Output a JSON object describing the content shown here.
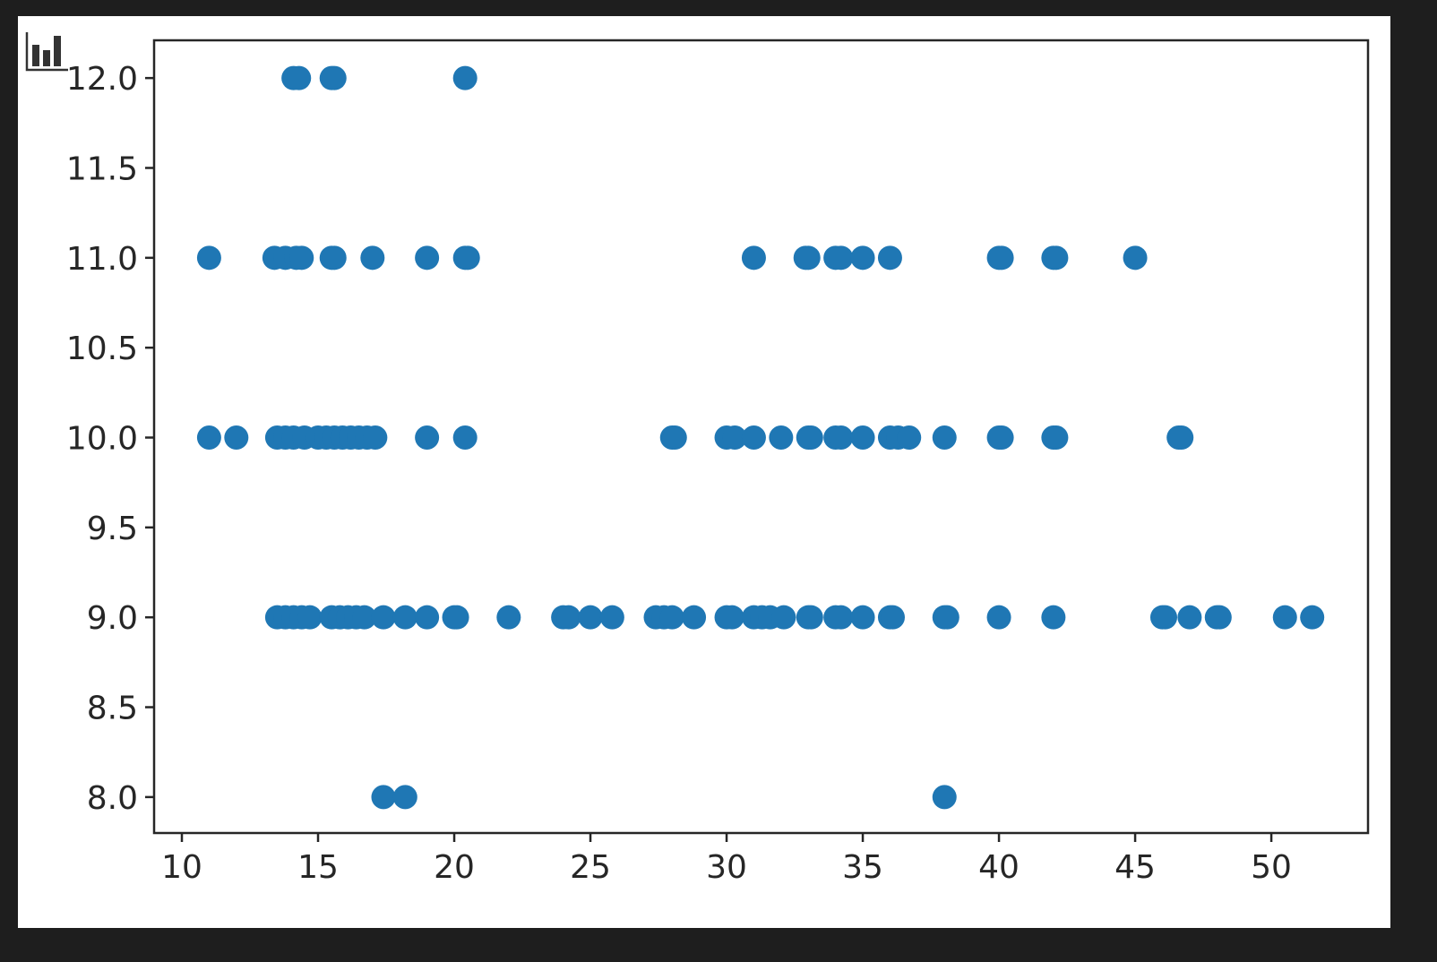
{
  "chart_data": {
    "type": "scatter",
    "title": "",
    "xlabel": "",
    "ylabel": "",
    "xlim": [
      8.98,
      53.55
    ],
    "ylim": [
      7.8,
      12.21
    ],
    "xticks": [
      10,
      15,
      20,
      25,
      30,
      35,
      40,
      45,
      50
    ],
    "yticks": [
      "8.0",
      "8.5",
      "9.0",
      "9.5",
      "10.0",
      "10.5",
      "11.0",
      "11.5",
      "12.0"
    ],
    "grid": false,
    "marker_color": "#1f77b4",
    "points": [
      {
        "y": 12,
        "x": [
          14.1,
          14.3,
          15.5,
          15.6,
          20.4
        ]
      },
      {
        "y": 11,
        "x": [
          11,
          13.4,
          13.8,
          14.2,
          14.4,
          15.5,
          15.6,
          17,
          19,
          20.4,
          20.5,
          31,
          32.9,
          33,
          34,
          34.2,
          35,
          36,
          40,
          40.1,
          42,
          42.1,
          45
        ]
      },
      {
        "y": 10,
        "x": [
          11,
          12,
          13.5,
          13.8,
          14.1,
          14.5,
          15,
          15.3,
          15.6,
          15.9,
          16.2,
          16.5,
          16.8,
          17.1,
          19,
          20.4,
          28,
          28.1,
          30,
          30.3,
          31,
          32,
          33,
          33.1,
          34,
          34.2,
          35,
          36,
          36.3,
          36.7,
          38,
          40,
          40.1,
          42,
          42.1,
          46.6,
          46.7
        ]
      },
      {
        "y": 9,
        "x": [
          13.5,
          13.8,
          14.1,
          14.4,
          14.7,
          15.5,
          15.8,
          16.1,
          16.4,
          16.7,
          17.4,
          18.2,
          19,
          20,
          20.1,
          22,
          24,
          24.2,
          25,
          25.8,
          27.4,
          27.7,
          28,
          28.8,
          30,
          30.2,
          31,
          31.3,
          31.6,
          32.1,
          33,
          33.1,
          34,
          34.2,
          35,
          36,
          36.1,
          38,
          38.1,
          40,
          42,
          46,
          46.1,
          47,
          48,
          48.1,
          50.5,
          51.5
        ]
      },
      {
        "y": 8,
        "x": [
          17.4,
          18.2,
          38
        ]
      }
    ]
  },
  "toolbar": {
    "icon": "bar-chart-icon"
  }
}
